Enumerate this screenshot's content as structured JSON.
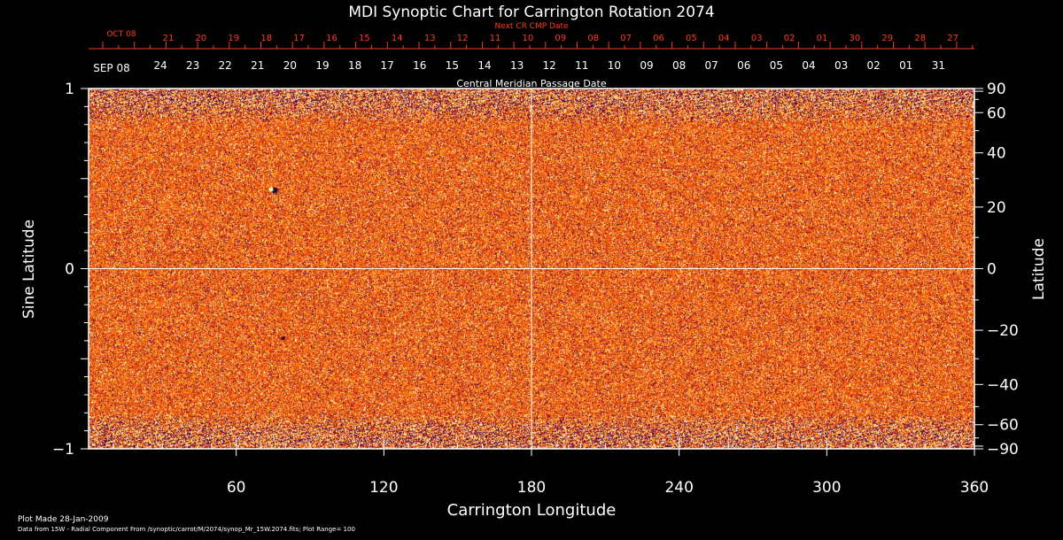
{
  "chart_data": {
    "type": "heatmap",
    "title": "MDI Synoptic Chart for Carrington Rotation 2074",
    "xlabel": "Carrington Longitude",
    "ylabel_left": "Sine Latitude",
    "ylabel_right": "Latitude",
    "xlim": [
      0,
      360
    ],
    "ylim": [
      -1,
      1
    ],
    "x_ticks": [
      60,
      120,
      180,
      240,
      300,
      360
    ],
    "y_ticks_left": [
      1,
      0,
      -1
    ],
    "y_ticks_right": [
      90,
      60,
      40,
      20,
      0,
      -20,
      -40,
      -60,
      -90
    ],
    "top_axis_title": "Next CR CMP Date",
    "top_axis_first": "OCT 08",
    "top_axis_days": [
      "21",
      "20",
      "19",
      "18",
      "17",
      "16",
      "15",
      "14",
      "13",
      "12",
      "11",
      "10",
      "09",
      "08",
      "07",
      "06",
      "05",
      "04",
      "03",
      "02",
      "01",
      "30",
      "29",
      "28",
      "27"
    ],
    "bottom_axis_title": "Central Meridian Passage Date",
    "bottom_axis_first": "SEP 08",
    "bottom_axis_days": [
      "24",
      "23",
      "22",
      "21",
      "20",
      "19",
      "18",
      "17",
      "16",
      "15",
      "14",
      "13",
      "12",
      "11",
      "10",
      "09",
      "08",
      "07",
      "06",
      "05",
      "04",
      "03",
      "02",
      "01",
      "31"
    ],
    "plot_made": "Plot Made 28-Jan-2009",
    "data_note": "Data from 15W - Radial Component From /synoptic/carrot/M/2074/synop_Mr_15W.2074.fits; Plot Range=  100",
    "colors": {
      "background": "#000000",
      "axes": "#ffffff",
      "top_axis_text": "#ff3a1a",
      "field_base": "#ee4a14",
      "field_dark": "#4a0c40",
      "field_bright": "#ffe070"
    }
  }
}
